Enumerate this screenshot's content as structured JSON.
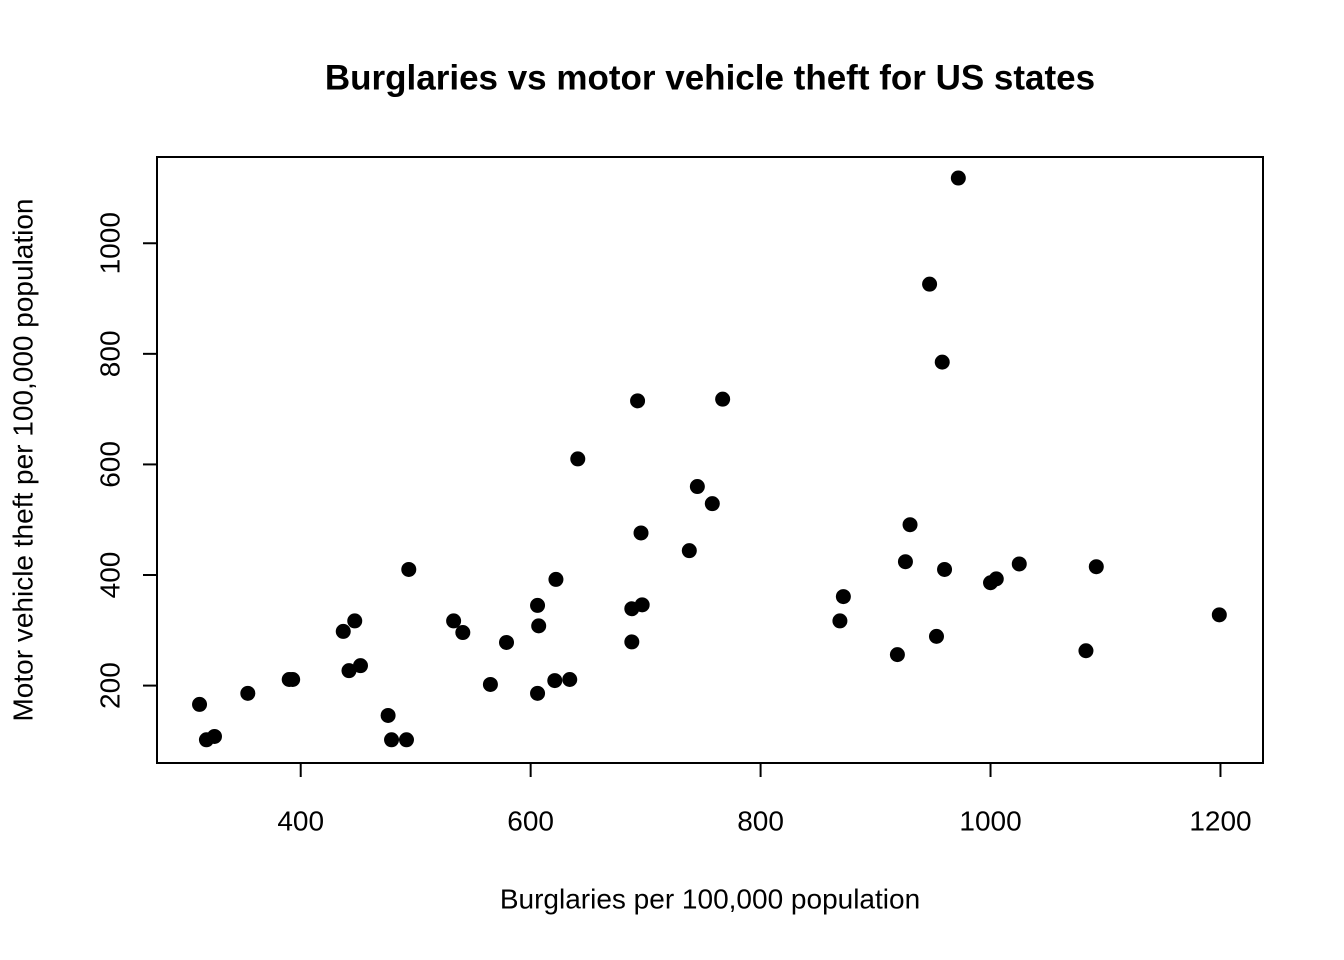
{
  "chart_data": {
    "type": "scatter",
    "title": "Burglaries vs motor vehicle theft for US states",
    "x_label": "Burglaries per 100,000 population",
    "y_label": "Motor vehicle theft per 100,000 population",
    "color": "#000000",
    "xlim": [
      275,
      1237
    ],
    "ylim": [
      60,
      1156
    ],
    "xticks": [
      400,
      600,
      800,
      1000,
      1200
    ],
    "yticks": [
      200,
      400,
      600,
      800,
      1000
    ],
    "x": [
      312,
      318,
      325,
      354,
      390,
      393,
      437,
      442,
      447,
      452,
      476,
      479,
      492,
      494,
      533,
      541,
      565,
      579,
      606,
      606,
      607,
      622,
      621,
      634,
      641,
      688,
      688,
      693,
      697,
      696,
      738,
      745,
      758,
      767,
      869,
      872,
      919,
      926,
      930,
      947,
      953,
      958,
      960,
      972,
      1000,
      1005,
      1025,
      1083,
      1092,
      1199
    ],
    "y": [
      166,
      102,
      108,
      186,
      211,
      211,
      298,
      227,
      317,
      236,
      146,
      102,
      102,
      410,
      317,
      296,
      202,
      278,
      186,
      345,
      308,
      392,
      209,
      211,
      610,
      279,
      339,
      715,
      346,
      476,
      444,
      560,
      529,
      718,
      317,
      361,
      256,
      424,
      491,
      926,
      289,
      785,
      410,
      1118,
      386,
      393,
      420,
      263,
      415,
      328
    ]
  }
}
